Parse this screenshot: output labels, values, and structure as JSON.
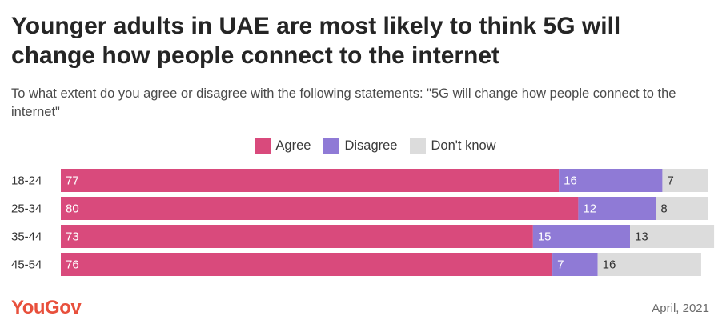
{
  "header": {
    "title": "Younger adults in UAE are most likely to think 5G will change how people connect to the internet",
    "subtitle": "To what extent do you agree or disagree with the following statements: \"5G will change how people connect to the internet\""
  },
  "footer": {
    "brand": "YouGov",
    "date": "April, 2021"
  },
  "colors": {
    "agree": "#d94a7c",
    "disagree": "#8f7ad6",
    "dont_know": "#dcdcdc",
    "brand": "#e8503c"
  },
  "chart_data": {
    "type": "bar",
    "orientation": "horizontal",
    "stacked": true,
    "categories": [
      "18-24",
      "25-34",
      "35-44",
      "45-54"
    ],
    "series": [
      {
        "name": "Agree",
        "values": [
          77,
          80,
          73,
          76
        ]
      },
      {
        "name": "Disagree",
        "values": [
          16,
          12,
          15,
          7
        ]
      },
      {
        "name": "Don't know",
        "values": [
          7,
          8,
          13,
          16
        ]
      }
    ],
    "legend_position": "top-center",
    "grid": false,
    "xlim": [
      0,
      100
    ]
  }
}
